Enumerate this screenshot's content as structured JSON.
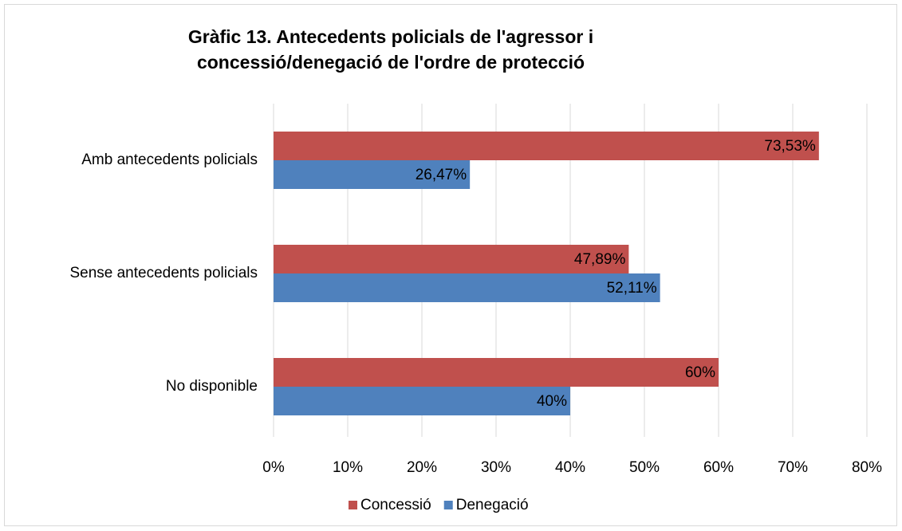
{
  "chart_data": {
    "type": "hbar",
    "title": "Gràfic 13. Antecedents policials de l'agressor i concessió/denegació de l'ordre de protecció",
    "categories": [
      "Amb antecedents policials",
      "Sense antecedents policials",
      "No disponible"
    ],
    "series": [
      {
        "name": "Concessió",
        "color": "#c0504d",
        "values": [
          73.53,
          47.89,
          60
        ],
        "value_labels": [
          "73,53%",
          "47,89%",
          "60%"
        ]
      },
      {
        "name": "Denegació",
        "color": "#4f81bd",
        "values": [
          26.47,
          52.11,
          40
        ],
        "value_labels": [
          "26,47%",
          "52,11%",
          "40%"
        ]
      }
    ],
    "xlim": [
      0,
      80
    ],
    "xticks": [
      {
        "value": 0,
        "label": "0%"
      },
      {
        "value": 10,
        "label": "10%"
      },
      {
        "value": 20,
        "label": "20%"
      },
      {
        "value": 30,
        "label": "30%"
      },
      {
        "value": 40,
        "label": "40%"
      },
      {
        "value": 50,
        "label": "50%"
      },
      {
        "value": 60,
        "label": "60%"
      },
      {
        "value": 70,
        "label": "70%"
      },
      {
        "value": 80,
        "label": "80%"
      }
    ],
    "grid": true,
    "legend": "bottom"
  }
}
